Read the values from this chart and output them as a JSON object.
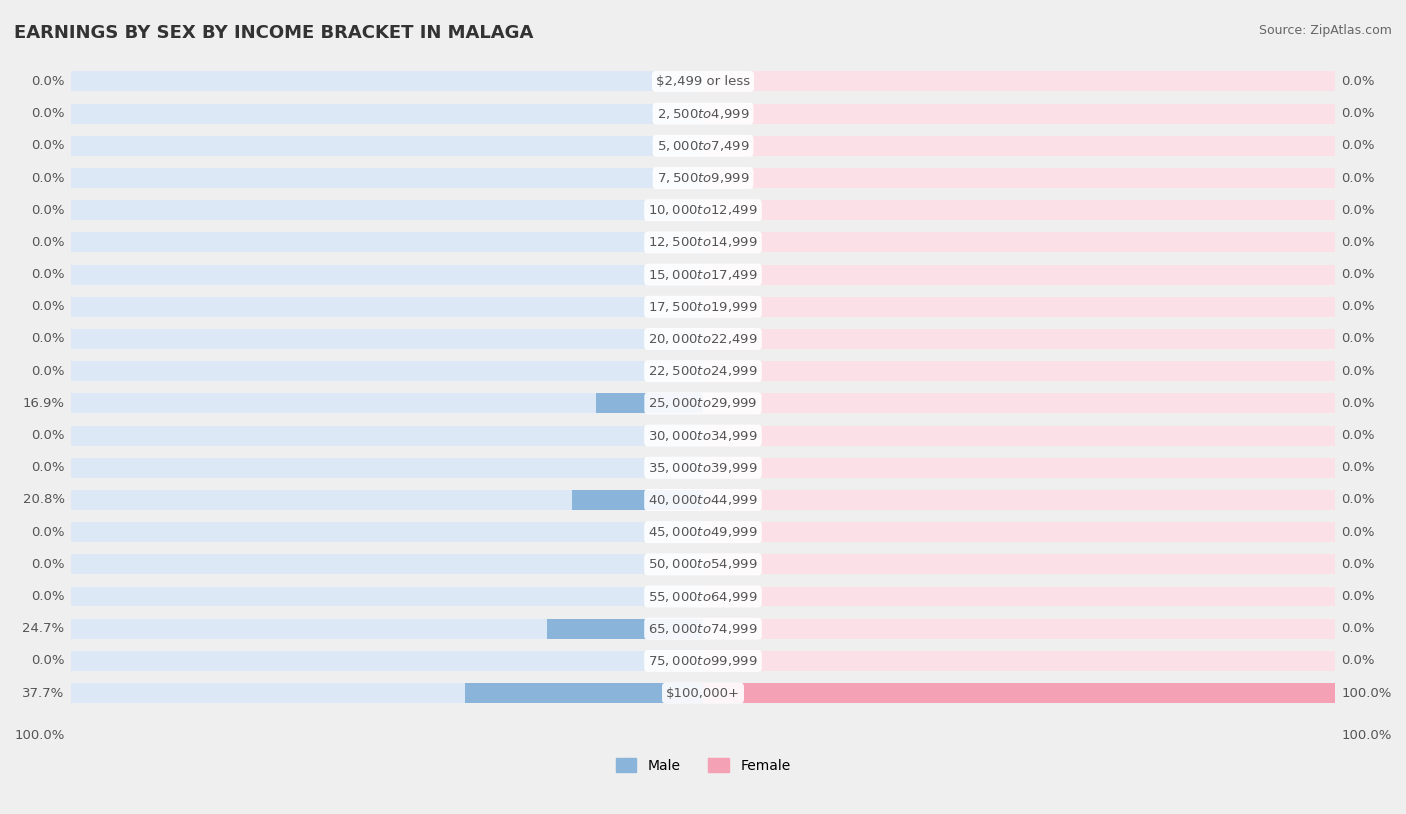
{
  "title": "EARNINGS BY SEX BY INCOME BRACKET IN MALAGA",
  "source": "Source: ZipAtlas.com",
  "categories": [
    "$2,499 or less",
    "$2,500 to $4,999",
    "$5,000 to $7,499",
    "$7,500 to $9,999",
    "$10,000 to $12,499",
    "$12,500 to $14,999",
    "$15,000 to $17,499",
    "$17,500 to $19,999",
    "$20,000 to $22,499",
    "$22,500 to $24,999",
    "$25,000 to $29,999",
    "$30,000 to $34,999",
    "$35,000 to $39,999",
    "$40,000 to $44,999",
    "$45,000 to $49,999",
    "$50,000 to $54,999",
    "$55,000 to $64,999",
    "$65,000 to $74,999",
    "$75,000 to $99,999",
    "$100,000+"
  ],
  "male_values": [
    0.0,
    0.0,
    0.0,
    0.0,
    0.0,
    0.0,
    0.0,
    0.0,
    0.0,
    0.0,
    16.9,
    0.0,
    0.0,
    20.8,
    0.0,
    0.0,
    0.0,
    24.7,
    0.0,
    37.7
  ],
  "female_values": [
    0.0,
    0.0,
    0.0,
    0.0,
    0.0,
    0.0,
    0.0,
    0.0,
    0.0,
    0.0,
    0.0,
    0.0,
    0.0,
    0.0,
    0.0,
    0.0,
    0.0,
    0.0,
    0.0,
    100.0
  ],
  "male_color": "#8ab4d9",
  "female_color": "#f4a0b5",
  "bar_bg_color": "#dce8f5",
  "bar_bg_female_color": "#fce0e8",
  "background_color": "#efefef",
  "label_color": "#555555",
  "title_color": "#333333",
  "xlim": 100,
  "bar_height": 0.62,
  "label_fontsize": 9.5,
  "title_fontsize": 13,
  "source_fontsize": 9
}
